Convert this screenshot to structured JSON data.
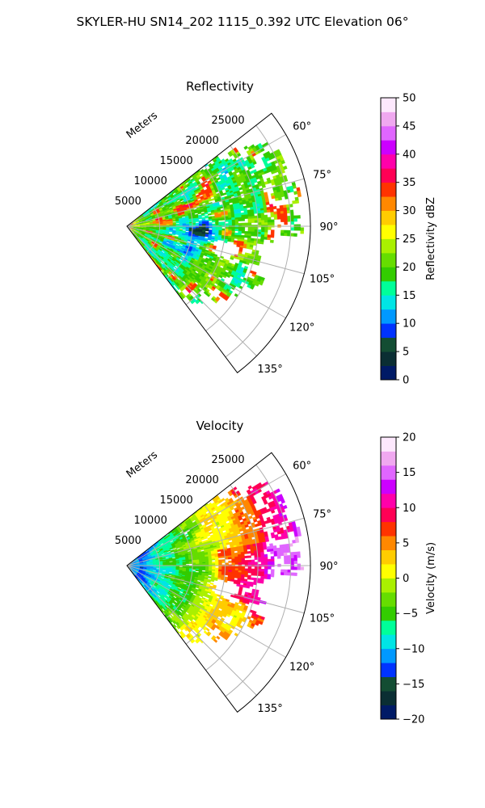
{
  "figure_title": "SKYLER-HU  SN14_202  1115_0.392 UTC Elevation 06°",
  "chart_data": [
    {
      "type": "heatmap",
      "projection": "polar-sector",
      "title": "Reflectivity",
      "radial_label": "Meters",
      "radial_ticks": [
        "5000",
        "10000",
        "15000",
        "20000",
        "25000"
      ],
      "radial_tick_values": [
        5000,
        10000,
        15000,
        20000,
        25000
      ],
      "radial_max": 28000,
      "azimuth_range_deg": [
        52,
        143
      ],
      "azimuth_ticks": [
        "60°",
        "75°",
        "90°",
        "105°",
        "120°",
        "135°"
      ],
      "azimuth_tick_values": [
        60,
        75,
        90,
        105,
        120,
        135
      ],
      "grid": true,
      "colorbar": {
        "label": "Reflectivity dBZ",
        "min": 0,
        "max": 50,
        "ticks": [
          "0",
          "5",
          "10",
          "15",
          "20",
          "25",
          "30",
          "35",
          "40",
          "45",
          "50"
        ],
        "tick_values": [
          0,
          5,
          10,
          15,
          20,
          25,
          30,
          35,
          40,
          45,
          50
        ],
        "colors": [
          "#001a66",
          "#0a2e33",
          "#134d33",
          "#0033ff",
          "#0099ff",
          "#00e5e5",
          "#00ff99",
          "#33cc00",
          "#66dd00",
          "#aaf000",
          "#ffff00",
          "#ffcc00",
          "#ff8800",
          "#ff3300",
          "#ff0055",
          "#ff00aa",
          "#cc00ff",
          "#e066ff",
          "#f0a8f0",
          "#fde8fd"
        ]
      },
      "field": "reflectivity"
    },
    {
      "type": "heatmap",
      "projection": "polar-sector",
      "title": "Velocity",
      "radial_label": "Meters",
      "radial_ticks": [
        "5000",
        "10000",
        "15000",
        "20000",
        "25000"
      ],
      "radial_tick_values": [
        5000,
        10000,
        15000,
        20000,
        25000
      ],
      "radial_max": 28000,
      "azimuth_range_deg": [
        52,
        143
      ],
      "azimuth_ticks": [
        "60°",
        "75°",
        "90°",
        "105°",
        "120°",
        "135°"
      ],
      "azimuth_tick_values": [
        60,
        75,
        90,
        105,
        120,
        135
      ],
      "grid": true,
      "colorbar": {
        "label": "Velocity (m/s)",
        "min": -20,
        "max": 20,
        "ticks": [
          "−20",
          "−15",
          "−10",
          "−5",
          "0",
          "5",
          "10",
          "15",
          "20"
        ],
        "tick_values": [
          -20,
          -15,
          -10,
          -5,
          0,
          5,
          10,
          15,
          20
        ],
        "colors": [
          "#001a66",
          "#0a2e33",
          "#134d33",
          "#0033ff",
          "#0099ff",
          "#00e5e5",
          "#00ff99",
          "#33cc00",
          "#66dd00",
          "#aaf000",
          "#ffff00",
          "#ffcc00",
          "#ff8800",
          "#ff3300",
          "#ff0055",
          "#ff00aa",
          "#cc00ff",
          "#e066ff",
          "#f0a8f0",
          "#fde8fd"
        ]
      },
      "field": "velocity"
    }
  ]
}
